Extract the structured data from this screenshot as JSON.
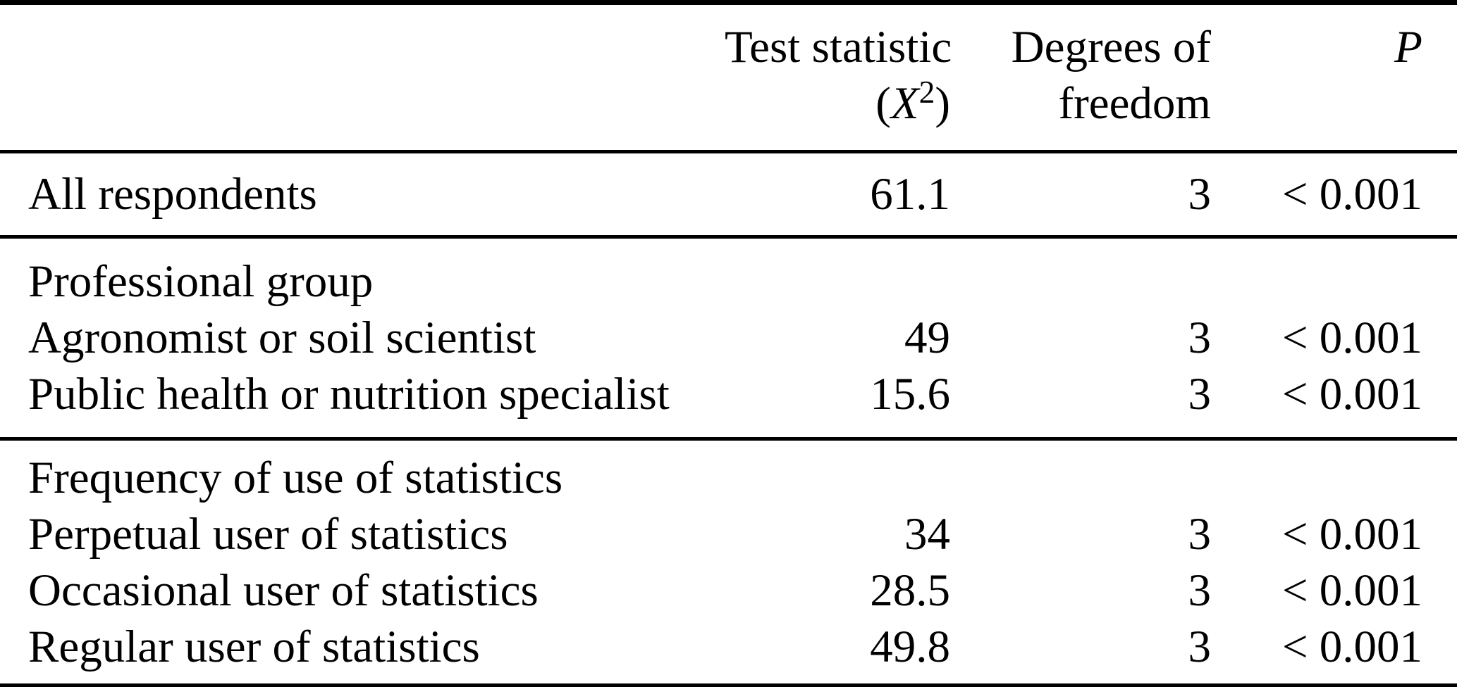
{
  "table": {
    "header": {
      "test_statistic": {
        "line1": "Test statistic",
        "paren_open": "(",
        "symbol": "X",
        "superscript": "2",
        "paren_close": ")"
      },
      "degrees_of_freedom": {
        "line1": "Degrees of",
        "line2": "freedom"
      },
      "p": "P"
    },
    "sections": [
      {
        "group": "",
        "rows": [
          {
            "label": "All respondents",
            "stat": "61.1",
            "df": "3",
            "p": "< 0.001"
          }
        ]
      },
      {
        "group": "Professional group",
        "rows": [
          {
            "label": "Agronomist or soil scientist",
            "stat": "49",
            "df": "3",
            "p": "< 0.001"
          },
          {
            "label": "Public health or nutrition specialist",
            "stat": "15.6",
            "df": "3",
            "p": "< 0.001"
          }
        ]
      },
      {
        "group": "Frequency of use of statistics",
        "rows": [
          {
            "label": "Perpetual user of statistics",
            "stat": "34",
            "df": "3",
            "p": "< 0.001"
          },
          {
            "label": "Occasional user of statistics",
            "stat": "28.5",
            "df": "3",
            "p": "< 0.001"
          },
          {
            "label": "Regular user of statistics",
            "stat": "49.8",
            "df": "3",
            "p": "< 0.001"
          }
        ]
      }
    ],
    "colors": {
      "text": "#000000",
      "background": "#ffffff",
      "rule": "#000000"
    }
  }
}
